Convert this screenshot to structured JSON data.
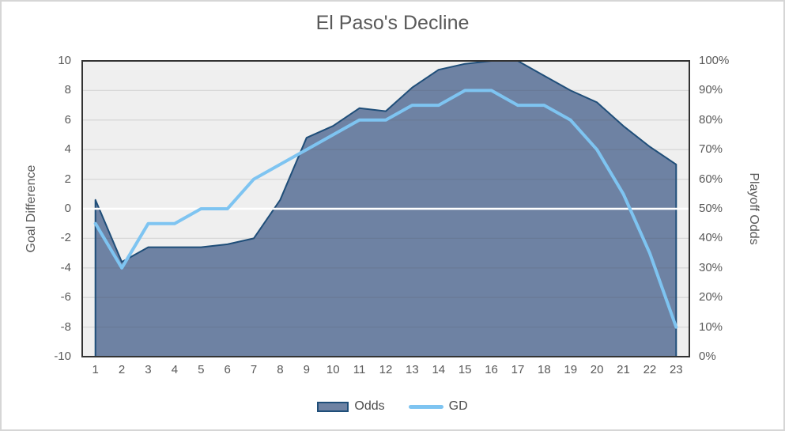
{
  "title": "El Paso's Decline",
  "axes": {
    "left": {
      "title": "Goal Difference",
      "ticks": [
        "10",
        "8",
        "6",
        "4",
        "2",
        "0",
        "-2",
        "-4",
        "-6",
        "-8",
        "-10"
      ]
    },
    "right": {
      "title": "Playoff Odds",
      "ticks": [
        "100%",
        "90%",
        "80%",
        "70%",
        "60%",
        "50%",
        "40%",
        "30%",
        "20%",
        "10%",
        "0%"
      ]
    },
    "x": {
      "ticks": [
        "1",
        "2",
        "3",
        "4",
        "5",
        "6",
        "7",
        "8",
        "9",
        "10",
        "11",
        "12",
        "13",
        "14",
        "15",
        "16",
        "17",
        "18",
        "19",
        "20",
        "21",
        "22",
        "23"
      ]
    }
  },
  "legend": {
    "items": [
      {
        "label": "Odds",
        "swatch": "area"
      },
      {
        "label": "GD",
        "swatch": "line"
      }
    ]
  },
  "colors": {
    "area_fill": "#6e82a3",
    "area_border": "#1f4e79",
    "gd_line": "#7ec4f1",
    "plot_bg": "#efefef",
    "plot_border": "#333333",
    "gridline": "rgba(80,80,80,0.14)",
    "zero_line": "#ffffff",
    "text": "#595959"
  },
  "chart_data": {
    "type": "area",
    "subtype": "area + line combo, dual y-axes",
    "title": "El Paso's Decline",
    "x": [
      1,
      2,
      3,
      4,
      5,
      6,
      7,
      8,
      9,
      10,
      11,
      12,
      13,
      14,
      15,
      16,
      17,
      18,
      19,
      20,
      21,
      22,
      23
    ],
    "series": [
      {
        "name": "Odds",
        "type": "area",
        "axis": "right",
        "unit": "%",
        "values": [
          53,
          32,
          37,
          37,
          37,
          38,
          40,
          53,
          74,
          78,
          84,
          83,
          91,
          97,
          99,
          100,
          100,
          95,
          90,
          86,
          78,
          71,
          65
        ]
      },
      {
        "name": "GD",
        "type": "line",
        "axis": "left",
        "values": [
          -1,
          -4,
          -1,
          -1,
          0,
          0,
          2,
          3,
          4,
          5,
          6,
          6,
          7,
          7,
          8,
          8,
          7,
          7,
          6,
          4,
          1,
          -3,
          -8
        ]
      }
    ],
    "left_ylabel": "Goal Difference",
    "right_ylabel": "Playoff Odds",
    "left_ylim": [
      -10,
      10
    ],
    "right_ylim": [
      0,
      100
    ],
    "grid": "horizontal gridlines every 2 GD / 10%, zero (50%) line white, no vertical gridlines",
    "legend_position": "bottom center"
  }
}
